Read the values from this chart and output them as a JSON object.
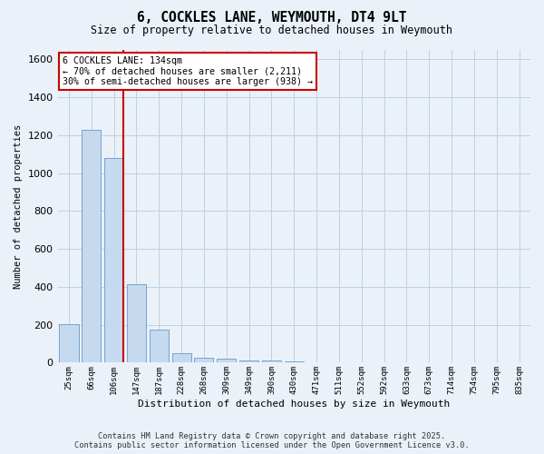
{
  "title": "6, COCKLES LANE, WEYMOUTH, DT4 9LT",
  "subtitle": "Size of property relative to detached houses in Weymouth",
  "xlabel": "Distribution of detached houses by size in Weymouth",
  "ylabel": "Number of detached properties",
  "categories": [
    "25sqm",
    "66sqm",
    "106sqm",
    "147sqm",
    "187sqm",
    "228sqm",
    "268sqm",
    "309sqm",
    "349sqm",
    "390sqm",
    "430sqm",
    "471sqm",
    "511sqm",
    "552sqm",
    "592sqm",
    "633sqm",
    "673sqm",
    "714sqm",
    "754sqm",
    "795sqm",
    "835sqm"
  ],
  "values": [
    205,
    1230,
    1080,
    415,
    175,
    50,
    25,
    20,
    10,
    10,
    5,
    0,
    0,
    0,
    0,
    0,
    0,
    0,
    0,
    0,
    0
  ],
  "bar_color": "#c5d9ef",
  "bar_edge_color": "#6699cc",
  "grid_color": "#c0d0e0",
  "background_color": "#eaf1f8",
  "red_line_x": 2.4,
  "annotation_line1": "6 COCKLES LANE: 134sqm",
  "annotation_line2": "← 70% of detached houses are smaller (2,211)",
  "annotation_line3": "30% of semi-detached houses are larger (938) →",
  "annotation_box_color": "#ffffff",
  "annotation_box_edge_color": "#cc0000",
  "ylim": [
    0,
    1650
  ],
  "yticks": [
    0,
    200,
    400,
    600,
    800,
    1000,
    1200,
    1400,
    1600
  ],
  "footer1": "Contains HM Land Registry data © Crown copyright and database right 2025.",
  "footer2": "Contains public sector information licensed under the Open Government Licence v3.0."
}
